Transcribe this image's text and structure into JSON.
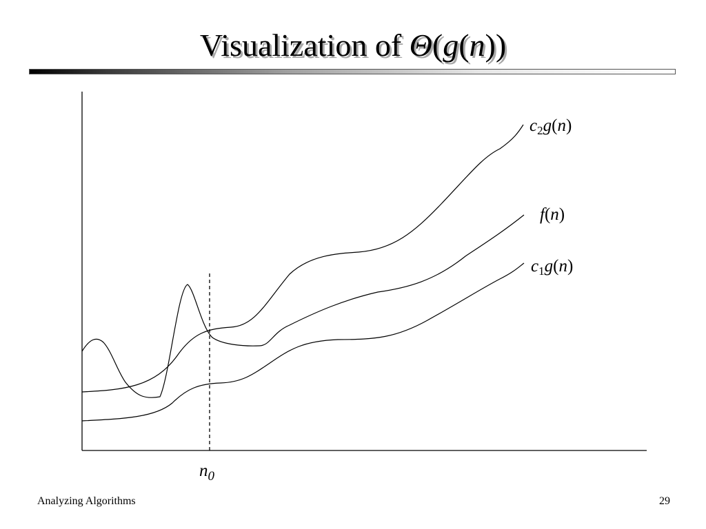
{
  "slide": {
    "title": {
      "prefix": "Visualization of ",
      "theta": "Θ",
      "open_paren_outer": "(",
      "g": "g",
      "open_paren_inner": "(",
      "n": "n",
      "close_parens": "))"
    },
    "footer": {
      "left": "Analyzing Algorithms",
      "page_number": "29"
    }
  },
  "diagram": {
    "curves": {
      "upper": {
        "c": "c",
        "sub": "2",
        "g": "g",
        "open": "(",
        "n": "n",
        "close": ")"
      },
      "middle": {
        "f": "f",
        "open": "(",
        "n": "n",
        "close": ")"
      },
      "lower": {
        "c": "c",
        "sub": "1",
        "g": "g",
        "open": "(",
        "n": "n",
        "close": ")"
      }
    },
    "threshold": {
      "n": "n",
      "sub": "0"
    },
    "colors": {
      "stroke": "#000000",
      "title_shadow": "#a8a8a8"
    }
  }
}
